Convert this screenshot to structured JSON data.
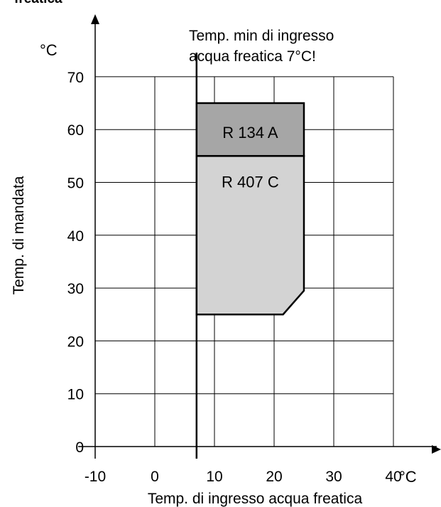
{
  "chart_data": {
    "type": "area",
    "title_partial": "freatica",
    "xlabel": "Temp. di ingresso acqua freatica",
    "ylabel": "Temp. di mandata",
    "y_unit": "°C",
    "x_unit": "°C",
    "xlim": [
      -10,
      40
    ],
    "ylim": [
      0,
      70
    ],
    "x_ticks": [
      -10,
      0,
      10,
      20,
      30,
      40
    ],
    "y_ticks": [
      0,
      10,
      20,
      30,
      40,
      50,
      60,
      70
    ],
    "grid": true,
    "min_line": {
      "x": 7,
      "label_line1": "Temp. min di ingresso",
      "label_line2": "acqua freatica 7°C!"
    },
    "regions": [
      {
        "name": "R 134 A",
        "color": "#a6a6a6",
        "polygon": [
          [
            7,
            55
          ],
          [
            25,
            55
          ],
          [
            25,
            65
          ],
          [
            7,
            65
          ]
        ]
      },
      {
        "name": "R 407 C",
        "color": "#d3d3d3",
        "polygon": [
          [
            7,
            25
          ],
          [
            21.5,
            25
          ],
          [
            25,
            29.5
          ],
          [
            25,
            55
          ],
          [
            7,
            55
          ]
        ]
      }
    ]
  }
}
